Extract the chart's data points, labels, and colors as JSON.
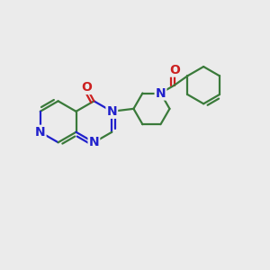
{
  "bg_color": "#EBEBEB",
  "bond_color": "#3A7A3A",
  "n_color": "#2020CC",
  "o_color": "#CC2020",
  "line_width": 1.6,
  "font_size": 10,
  "fig_size": [
    3.0,
    3.0
  ],
  "dpi": 100,
  "xlim": [
    0,
    10
  ],
  "ylim": [
    0,
    10
  ]
}
